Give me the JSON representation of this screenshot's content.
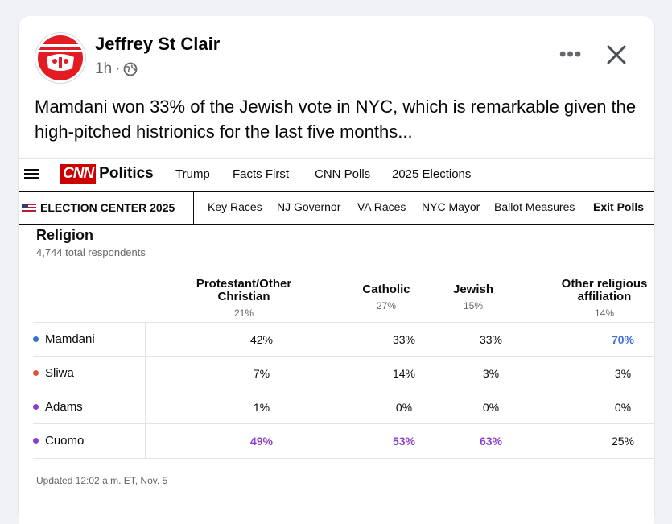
{
  "post": {
    "author": "Jeffrey St Clair",
    "time": "1h",
    "separator": "·",
    "text": "Mamdani won 33% of the Jewish vote in NYC, which is remarkable given the high-pitched histrionics for the last five months...",
    "more_label": "•••"
  },
  "cnn": {
    "logo_cnn": "CNN",
    "logo_politics": "Politics",
    "nav": [
      "Trump",
      "Facts First",
      "CNN Polls",
      "2025 Elections"
    ],
    "election_center": "ELECTION CENTER 2025",
    "subnav": [
      "Key Races",
      "NJ Governor",
      "VA Races",
      "NYC Mayor",
      "Ballot Measures",
      "Exit Polls"
    ],
    "section_title": "Religion",
    "respondents": "4,744 total respondents",
    "updated": "Updated 12:02 a.m. ET, Nov. 5"
  },
  "table": {
    "columns": [
      {
        "label": "Protestant/Other Christian",
        "share": "21%"
      },
      {
        "label": "Catholic",
        "share": "27%"
      },
      {
        "label": "Jewish",
        "share": "15%"
      },
      {
        "label": "Other religious affiliation",
        "share": "14%"
      }
    ],
    "rows": [
      {
        "name": "Mamdani",
        "dot": "#3b6fd8",
        "values": [
          "42%",
          "33%",
          "33%",
          "70%"
        ]
      },
      {
        "name": "Sliwa",
        "dot": "#e0533d",
        "values": [
          "7%",
          "14%",
          "3%",
          "3%"
        ]
      },
      {
        "name": "Adams",
        "dot": "#8b3fc9",
        "values": [
          "1%",
          "0%",
          "0%",
          "0%"
        ]
      },
      {
        "name": "Cuomo",
        "dot": "#8b3fc9",
        "values": [
          "49%",
          "53%",
          "63%",
          "25%"
        ]
      }
    ]
  },
  "colors": {
    "cnn_red": "#cc0000",
    "mamdani_blue": "#3b6fd8",
    "cuomo_purple": "#8b3fc9"
  }
}
